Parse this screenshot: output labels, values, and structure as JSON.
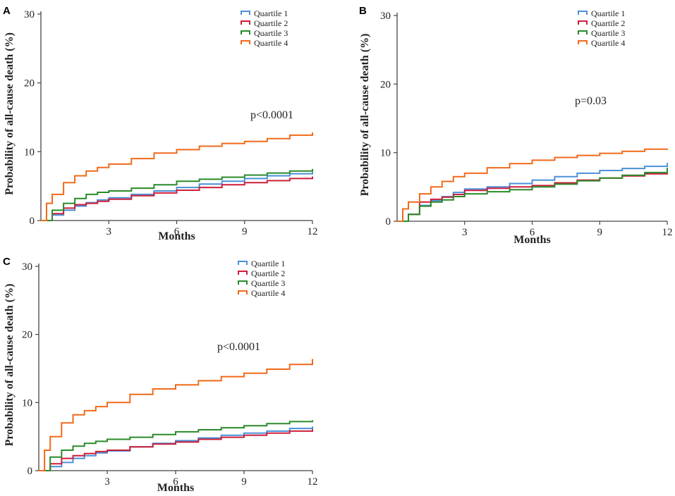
{
  "figure": {
    "panels": [
      "A",
      "B",
      "C"
    ]
  },
  "chart_data": [
    {
      "panel": "A",
      "type": "line",
      "title": "",
      "xlabel": "Months",
      "ylabel": "Probability of all-cause death (%)",
      "xlim": [
        0,
        12
      ],
      "ylim": [
        0,
        30
      ],
      "xticks": [
        3,
        6,
        9,
        12
      ],
      "yticks": [
        0,
        10,
        20,
        30
      ],
      "grid": false,
      "legend": "top-right",
      "annotation": "p<0.0001",
      "series": [
        {
          "name": "Quartile 1",
          "color": "#4a90d9",
          "x": [
            0,
            0.5,
            1,
            1.5,
            2,
            2.5,
            3,
            4,
            5,
            6,
            7,
            8,
            9,
            10,
            11,
            12
          ],
          "y": [
            0,
            0.8,
            1.5,
            2.1,
            2.6,
            3.0,
            3.3,
            3.8,
            4.3,
            4.8,
            5.3,
            5.7,
            6.1,
            6.5,
            6.8,
            7.1
          ]
        },
        {
          "name": "Quartile 2",
          "color": "#cc1f3a",
          "x": [
            0,
            0.5,
            1,
            1.5,
            2,
            2.5,
            3,
            4,
            5,
            6,
            7,
            8,
            9,
            10,
            11,
            12
          ],
          "y": [
            0,
            1.0,
            1.8,
            2.3,
            2.5,
            2.8,
            3.1,
            3.6,
            4.0,
            4.4,
            4.8,
            5.2,
            5.5,
            5.8,
            6.1,
            6.4
          ]
        },
        {
          "name": "Quartile 3",
          "color": "#2a8a2a",
          "x": [
            0,
            0.5,
            1,
            1.5,
            2,
            2.5,
            3,
            4,
            5,
            6,
            7,
            8,
            9,
            10,
            11,
            12
          ],
          "y": [
            0,
            1.5,
            2.5,
            3.2,
            3.8,
            4.1,
            4.3,
            4.7,
            5.2,
            5.7,
            6.0,
            6.3,
            6.6,
            6.9,
            7.2,
            7.5
          ]
        },
        {
          "name": "Quartile 4",
          "color": "#f06a1a",
          "x": [
            0,
            0.25,
            0.5,
            1,
            1.5,
            2,
            2.5,
            3,
            4,
            5,
            6,
            7,
            8,
            9,
            10,
            11,
            12
          ],
          "y": [
            0,
            2.5,
            3.8,
            5.5,
            6.5,
            7.2,
            7.7,
            8.2,
            9.0,
            9.8,
            10.3,
            10.8,
            11.2,
            11.5,
            11.9,
            12.4,
            12.8
          ]
        }
      ]
    },
    {
      "panel": "B",
      "type": "line",
      "title": "",
      "xlabel": "Months",
      "ylabel": "Probability of all-cause death (%)",
      "xlim": [
        0,
        12
      ],
      "ylim": [
        0,
        30
      ],
      "xticks": [
        3,
        6,
        9,
        12
      ],
      "yticks": [
        0,
        10,
        20,
        30
      ],
      "grid": false,
      "legend": "top-right",
      "annotation": "p=0.03",
      "series": [
        {
          "name": "Quartile 1",
          "color": "#4a90d9",
          "x": [
            0,
            0.5,
            1,
            1.5,
            2,
            2.5,
            3,
            4,
            5,
            6,
            7,
            8,
            9,
            10,
            11,
            12
          ],
          "y": [
            0,
            1.0,
            2.3,
            3.0,
            3.6,
            4.2,
            4.7,
            5.0,
            5.5,
            6.0,
            6.5,
            7.0,
            7.4,
            7.7,
            8.0,
            8.5
          ]
        },
        {
          "name": "Quartile 2",
          "color": "#cc1f3a",
          "x": [
            0,
            0.5,
            1,
            1.5,
            2,
            2.5,
            3,
            4,
            5,
            6,
            7,
            8,
            9,
            10,
            11,
            12
          ],
          "y": [
            0,
            1.0,
            2.8,
            3.2,
            3.5,
            3.9,
            4.5,
            4.8,
            5.0,
            5.2,
            5.6,
            6.0,
            6.3,
            6.6,
            6.9,
            7.1
          ]
        },
        {
          "name": "Quartile 3",
          "color": "#2a8a2a",
          "x": [
            0,
            0.5,
            1,
            1.5,
            2,
            2.5,
            3,
            4,
            5,
            6,
            7,
            8,
            9,
            10,
            11,
            12
          ],
          "y": [
            0,
            1.0,
            2.2,
            2.8,
            3.1,
            3.6,
            4.0,
            4.3,
            4.6,
            5.0,
            5.4,
            5.9,
            6.3,
            6.7,
            7.1,
            7.8
          ]
        },
        {
          "name": "Quartile 4",
          "color": "#f06a1a",
          "x": [
            0,
            0.25,
            0.5,
            1,
            1.5,
            2,
            2.5,
            3,
            4,
            5,
            6,
            7,
            8,
            9,
            10,
            11,
            12
          ],
          "y": [
            0,
            1.8,
            2.8,
            4.0,
            5.0,
            5.8,
            6.5,
            7.0,
            7.8,
            8.4,
            8.9,
            9.3,
            9.6,
            9.9,
            10.2,
            10.5,
            10.6
          ]
        }
      ]
    },
    {
      "panel": "C",
      "type": "line",
      "title": "",
      "xlabel": "Months",
      "ylabel": "Probability of all-cause death (%)",
      "xlim": [
        0,
        12
      ],
      "ylim": [
        0,
        30
      ],
      "xticks": [
        3,
        6,
        9,
        12
      ],
      "yticks": [
        0,
        10,
        20,
        30
      ],
      "grid": false,
      "legend": "top",
      "annotation": "p<0.0001",
      "series": [
        {
          "name": "Quartile 1",
          "color": "#4a90d9",
          "x": [
            0,
            0.5,
            1,
            1.5,
            2,
            2.5,
            3,
            4,
            5,
            6,
            7,
            8,
            9,
            10,
            11,
            12
          ],
          "y": [
            0,
            0.6,
            1.2,
            1.8,
            2.2,
            2.6,
            2.9,
            3.5,
            4.0,
            4.4,
            4.8,
            5.2,
            5.5,
            5.8,
            6.2,
            6.5
          ]
        },
        {
          "name": "Quartile 2",
          "color": "#cc1f3a",
          "x": [
            0,
            0.5,
            1,
            1.5,
            2,
            2.5,
            3,
            4,
            5,
            6,
            7,
            8,
            9,
            10,
            11,
            12
          ],
          "y": [
            0,
            1.0,
            1.8,
            2.2,
            2.5,
            2.8,
            3.0,
            3.5,
            3.9,
            4.2,
            4.6,
            4.9,
            5.2,
            5.5,
            5.8,
            6.1
          ]
        },
        {
          "name": "Quartile 3",
          "color": "#2a8a2a",
          "x": [
            0,
            0.5,
            1,
            1.5,
            2,
            2.5,
            3,
            4,
            5,
            6,
            7,
            8,
            9,
            10,
            11,
            12
          ],
          "y": [
            0,
            2.0,
            3.0,
            3.6,
            4.0,
            4.3,
            4.6,
            4.9,
            5.3,
            5.7,
            6.0,
            6.3,
            6.6,
            6.9,
            7.2,
            7.4
          ]
        },
        {
          "name": "Quartile 4",
          "color": "#f06a1a",
          "x": [
            0,
            0.25,
            0.5,
            1,
            1.5,
            2,
            2.5,
            3,
            4,
            5,
            6,
            7,
            8,
            9,
            10,
            11,
            12
          ],
          "y": [
            0,
            3.0,
            5.0,
            7.0,
            8.2,
            8.8,
            9.4,
            10.0,
            11.2,
            12.0,
            12.6,
            13.2,
            13.8,
            14.3,
            14.9,
            15.6,
            16.4
          ]
        }
      ]
    }
  ]
}
